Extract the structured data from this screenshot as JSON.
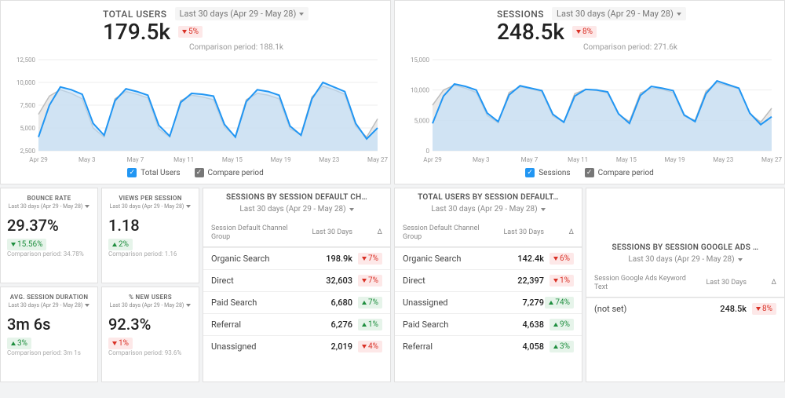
{
  "period_label": "Last 30 days (Apr 29 - May 28)",
  "colors": {
    "main_line": "#2196f3",
    "main_fill": "#bcdffb",
    "compare_line": "#bdbdbd",
    "compare_fill": "#e0e0e0",
    "grid": "#eeeeee",
    "axis_text": "#999999",
    "card_border": "#e0e0e0",
    "bg": "#f2f3f4",
    "delta_down_bg": "#fde8e8",
    "delta_down_fg": "#d93025",
    "delta_up_bg": "#e6f4ea",
    "delta_up_fg": "#1e8e3e"
  },
  "charts": [
    {
      "title": "TOTAL USERS",
      "value": "179.5k",
      "delta": "5%",
      "delta_dir": "down",
      "comparison": "Comparison period: 188.1k",
      "legend_main": "Total Users",
      "legend_compare": "Compare period",
      "ylim": [
        2500,
        12500
      ],
      "yticks": [
        2500,
        5000,
        7500,
        10000,
        12500
      ],
      "ytick_labels": [
        "2,500",
        "5,000",
        "7,500",
        "10,000",
        "12,500"
      ],
      "xtick_labels": [
        "Apr 29",
        "May 3",
        "May 7",
        "May 11",
        "May 15",
        "May 19",
        "May 23",
        "May 27"
      ],
      "series_main": [
        4000,
        7500,
        9500,
        9200,
        8700,
        5500,
        4200,
        8000,
        9300,
        9000,
        8600,
        5300,
        4100,
        7800,
        8800,
        8700,
        8500,
        5400,
        4000,
        7900,
        9200,
        9000,
        8600,
        5200,
        4200,
        8200,
        10000,
        9500,
        9000,
        5500,
        3800,
        5000
      ],
      "series_compare": [
        6500,
        8500,
        9200,
        8800,
        8200,
        5000,
        4000,
        8200,
        9000,
        8700,
        8300,
        4900,
        4000,
        8000,
        8600,
        8400,
        8100,
        5100,
        4100,
        8100,
        8800,
        8600,
        8200,
        4900,
        4300,
        8400,
        9600,
        9200,
        8700,
        5200,
        4000,
        6000
      ]
    },
    {
      "title": "SESSIONS",
      "value": "248.5k",
      "delta": "8%",
      "delta_dir": "down",
      "comparison": "Comparison period: 271.6k",
      "legend_main": "Sessions",
      "legend_compare": "Compare period",
      "ylim": [
        0,
        15000
      ],
      "yticks": [
        0,
        5000,
        10000,
        15000
      ],
      "ytick_labels": [
        "0",
        "5,000",
        "10,000",
        "15,000"
      ],
      "xtick_labels": [
        "Apr 29",
        "May 3",
        "May 7",
        "May 11",
        "May 15",
        "May 19",
        "May 23",
        "May 27"
      ],
      "series_main": [
        4500,
        9000,
        11000,
        10600,
        10000,
        6200,
        4800,
        9200,
        10700,
        10300,
        9900,
        6000,
        4700,
        9000,
        10100,
        10000,
        9700,
        6100,
        4500,
        9100,
        10600,
        10300,
        9900,
        5900,
        4800,
        9400,
        11500,
        10900,
        10300,
        6200,
        4300,
        5600
      ],
      "series_compare": [
        7500,
        10000,
        10800,
        10300,
        9600,
        5800,
        4600,
        9600,
        10500,
        10200,
        9700,
        5700,
        4700,
        9400,
        10100,
        9900,
        9500,
        6000,
        4800,
        9500,
        10300,
        10100,
        9600,
        5700,
        5000,
        9800,
        11200,
        10700,
        10200,
        6100,
        4700,
        7000
      ]
    }
  ],
  "small_metrics": [
    {
      "title": "BOUNCE RATE",
      "period": "Last 30 days (Apr 29 - May 28)",
      "value": "29.37%",
      "delta": "15.56%",
      "delta_dir": "down",
      "delta_good": true,
      "comparison": "Comparison period: 34.78%"
    },
    {
      "title": "VIEWS PER SESSION",
      "period": "Last 30 days (Apr 29 - May 28)",
      "value": "1.18",
      "delta": "2%",
      "delta_dir": "up",
      "delta_good": true,
      "comparison": "Comparison period: 1.16"
    },
    {
      "title": "AVG. SESSION DURATION",
      "period": "Last 30 days (Apr 29 - May 28)",
      "value": "3m 6s",
      "delta": "3%",
      "delta_dir": "up",
      "delta_good": true,
      "comparison": "Comparison period: 3m 1s"
    },
    {
      "title": "% NEW USERS",
      "period": "Last 30 days (Apr 29 - May 28)",
      "value": "92.3%",
      "delta": "1%",
      "delta_dir": "down",
      "delta_good": false,
      "comparison": "Comparison period: 93.6%"
    }
  ],
  "channel_tables": [
    {
      "title": "SESSIONS BY SESSION DEFAULT CH…",
      "period": "Last 30 days (Apr 29 - May 28)",
      "head_col1": "Session Default Channel Group",
      "head_col2": "Last 30 Days",
      "head_col3": "Δ",
      "rows": [
        {
          "label": "Organic Search",
          "value": "198.9k",
          "delta": "7%",
          "delta_dir": "down"
        },
        {
          "label": "Direct",
          "value": "32,603",
          "delta": "7%",
          "delta_dir": "down"
        },
        {
          "label": "Paid Search",
          "value": "6,680",
          "delta": "7%",
          "delta_dir": "up"
        },
        {
          "label": "Referral",
          "value": "6,276",
          "delta": "1%",
          "delta_dir": "up"
        },
        {
          "label": "Unassigned",
          "value": "2,019",
          "delta": "4%",
          "delta_dir": "down"
        }
      ]
    },
    {
      "title": "TOTAL USERS BY SESSION DEFAULT…",
      "period": "Last 30 days (Apr 29 - May 28)",
      "head_col1": "Session Default Channel Group",
      "head_col2": "Last 30 Days",
      "head_col3": "Δ",
      "rows": [
        {
          "label": "Organic Search",
          "value": "142.4k",
          "delta": "6%",
          "delta_dir": "down"
        },
        {
          "label": "Direct",
          "value": "22,397",
          "delta": "1%",
          "delta_dir": "down"
        },
        {
          "label": "Unassigned",
          "value": "7,279",
          "delta": "74%",
          "delta_dir": "up"
        },
        {
          "label": "Paid Search",
          "value": "4,638",
          "delta": "9%",
          "delta_dir": "up"
        },
        {
          "label": "Referral",
          "value": "4,058",
          "delta": "3%",
          "delta_dir": "up"
        }
      ]
    }
  ],
  "google_ads_table": {
    "title": "SESSIONS BY SESSION GOOGLE ADS …",
    "period": "Last 30 days (Apr 29 - May 28)",
    "head_col1": "Session Google Ads Keyword Text",
    "head_col2": "Last 30 Days",
    "head_col3": "Δ",
    "rows": [
      {
        "label": "(not set)",
        "value": "248.5k",
        "delta": "8%",
        "delta_dir": "down"
      }
    ]
  }
}
